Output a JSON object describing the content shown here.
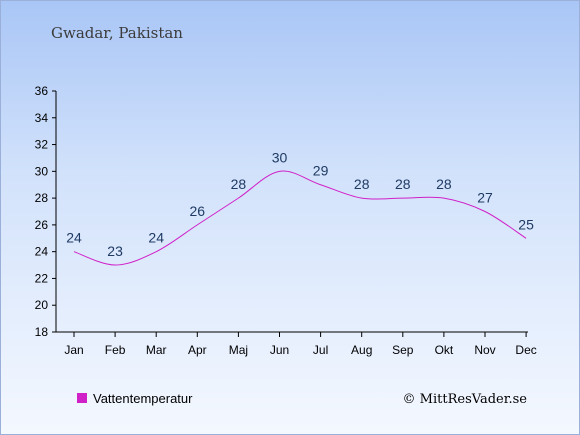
{
  "chart_data": {
    "type": "line",
    "title": "Gwadar, Pakistan",
    "categories": [
      "Jan",
      "Feb",
      "Mar",
      "Apr",
      "Maj",
      "Jun",
      "Jul",
      "Aug",
      "Sep",
      "Okt",
      "Nov",
      "Dec"
    ],
    "series": [
      {
        "name": "Vattentemperatur",
        "values": [
          24,
          23,
          24,
          26,
          28,
          30,
          29,
          28,
          28,
          28,
          27,
          25
        ],
        "color": "#d020c8"
      }
    ],
    "ylim": [
      18,
      36
    ],
    "yticks": [
      18,
      20,
      22,
      24,
      26,
      28,
      30,
      32,
      34,
      36
    ],
    "grid": false,
    "legend_position": "bottom-left"
  },
  "credit": "© MittResVader.se"
}
